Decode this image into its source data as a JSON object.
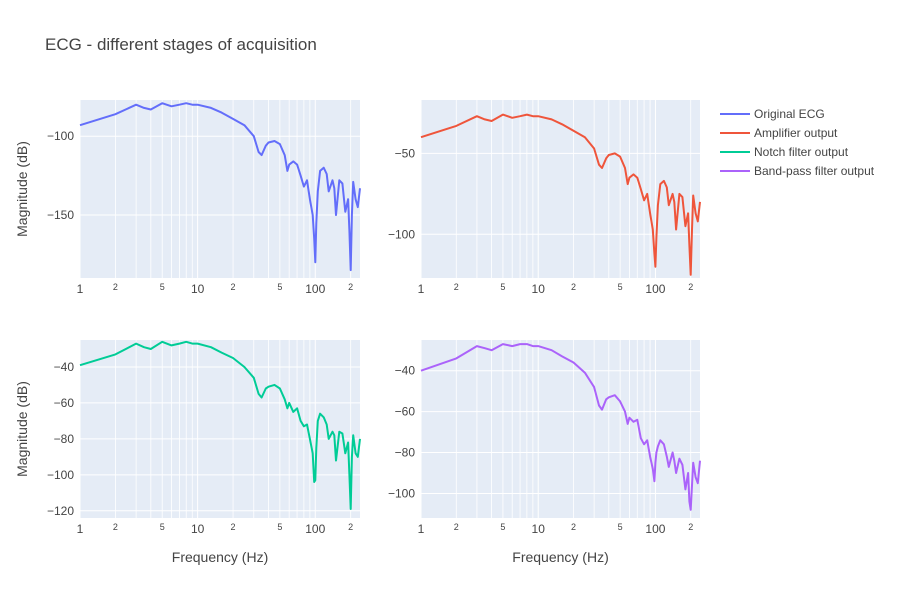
{
  "chart_data": {
    "type": "line",
    "title": "ECG - different stages of acquisition",
    "xscale": "log",
    "xlabel": "Frequency (Hz)",
    "ylabel": "Magnitude (dB)",
    "legend": "right",
    "grid": true,
    "plot_bg": "#e5ecf6",
    "subplots": [
      {
        "series": "Original ECG",
        "color": "#636efa",
        "ylim": [
          -190,
          -77
        ],
        "yticks": [
          -100,
          -150
        ],
        "x": [
          1,
          2,
          3,
          3.5,
          4,
          5,
          6,
          7,
          8,
          9,
          10,
          13,
          16,
          20,
          25,
          30,
          33,
          35,
          38,
          40,
          45,
          50,
          55,
          58,
          60,
          65,
          70,
          75,
          80,
          85,
          90,
          95,
          98,
          100,
          102,
          105,
          110,
          118,
          125,
          130,
          140,
          145,
          150,
          160,
          170,
          180,
          190,
          195,
          200,
          205,
          210,
          220,
          230,
          240
        ],
        "y": [
          -93,
          -86,
          -80,
          -82,
          -83,
          -79,
          -81,
          -80,
          -79,
          -80,
          -80,
          -82,
          -85,
          -89,
          -93,
          -100,
          -110,
          -112,
          -106,
          -104,
          -103,
          -105,
          -112,
          -122,
          -118,
          -116,
          -118,
          -125,
          -132,
          -128,
          -140,
          -150,
          -165,
          -180,
          -155,
          -135,
          -122,
          -120,
          -124,
          -135,
          -128,
          -133,
          -150,
          -128,
          -130,
          -148,
          -140,
          -160,
          -185,
          -150,
          -129,
          -140,
          -145,
          -133
        ]
      },
      {
        "series": "Amplifier output",
        "color": "#ef553b",
        "ylim": [
          -127,
          -17
        ],
        "yticks": [
          -50,
          -100
        ],
        "x": [
          1,
          2,
          3,
          3.5,
          4,
          5,
          6,
          7,
          8,
          9,
          10,
          13,
          16,
          20,
          25,
          30,
          33,
          35,
          38,
          40,
          45,
          50,
          55,
          58,
          60,
          65,
          70,
          75,
          80,
          85,
          90,
          95,
          98,
          100,
          102,
          105,
          110,
          118,
          125,
          130,
          140,
          145,
          150,
          160,
          170,
          180,
          190,
          195,
          200,
          205,
          210,
          220,
          230,
          240
        ],
        "y": [
          -40,
          -33,
          -27,
          -29,
          -30,
          -26,
          -28,
          -27,
          -26,
          -27,
          -27,
          -29,
          -32,
          -36,
          -40,
          -47,
          -57,
          -59,
          -53,
          -51,
          -50,
          -52,
          -59,
          -69,
          -65,
          -63,
          -65,
          -72,
          -79,
          -75,
          -87,
          -97,
          -112,
          -120,
          -102,
          -82,
          -69,
          -67,
          -71,
          -82,
          -75,
          -80,
          -97,
          -75,
          -77,
          -95,
          -87,
          -107,
          -125,
          -97,
          -76,
          -87,
          -92,
          -80
        ]
      },
      {
        "series": "Notch filter output",
        "color": "#00cc96",
        "ylim": [
          -124,
          -25
        ],
        "yticks": [
          -40,
          -60,
          -80,
          -100,
          -120
        ],
        "x": [
          1,
          2,
          3,
          3.5,
          4,
          5,
          6,
          7,
          8,
          9,
          10,
          13,
          16,
          20,
          25,
          30,
          33,
          35,
          38,
          40,
          45,
          50,
          55,
          58,
          60,
          65,
          70,
          75,
          80,
          85,
          90,
          95,
          98,
          100,
          102,
          105,
          110,
          118,
          125,
          130,
          140,
          145,
          150,
          160,
          170,
          180,
          190,
          195,
          200,
          205,
          210,
          220,
          230,
          240
        ],
        "y": [
          -39,
          -33,
          -27,
          -29,
          -30,
          -26,
          -28,
          -27,
          -26,
          -27,
          -27,
          -29,
          -32,
          -35,
          -40,
          -46,
          -55,
          -57,
          -52,
          -51,
          -50,
          -52,
          -58,
          -63,
          -60,
          -65,
          -63,
          -70,
          -73,
          -72,
          -80,
          -88,
          -104,
          -103,
          -85,
          -70,
          -66,
          -68,
          -72,
          -80,
          -76,
          -78,
          -92,
          -76,
          -77,
          -88,
          -82,
          -100,
          -119,
          -90,
          -78,
          -88,
          -90,
          -80
        ]
      },
      {
        "series": "Band-pass filter output",
        "color": "#ab63fa",
        "ylim": [
          -112,
          -25
        ],
        "yticks": [
          -40,
          -60,
          -80,
          -100
        ],
        "x": [
          1,
          2,
          3,
          3.5,
          4,
          5,
          6,
          7,
          8,
          9,
          10,
          13,
          16,
          20,
          25,
          30,
          33,
          35,
          38,
          40,
          45,
          50,
          55,
          58,
          60,
          65,
          70,
          75,
          80,
          85,
          90,
          95,
          98,
          100,
          102,
          105,
          110,
          118,
          125,
          130,
          140,
          145,
          150,
          160,
          170,
          180,
          190,
          195,
          200,
          205,
          210,
          220,
          230,
          240
        ],
        "y": [
          -40,
          -34,
          -28,
          -29,
          -30,
          -27,
          -28,
          -27,
          -27,
          -28,
          -28,
          -30,
          -33,
          -36,
          -41,
          -48,
          -57,
          -59,
          -54,
          -53,
          -52,
          -55,
          -60,
          -66,
          -63,
          -65,
          -64,
          -73,
          -76,
          -74,
          -82,
          -88,
          -94,
          -85,
          -80,
          -77,
          -74,
          -76,
          -82,
          -87,
          -80,
          -84,
          -90,
          -83,
          -86,
          -98,
          -90,
          -104,
          -108,
          -96,
          -85,
          -92,
          -95,
          -84
        ]
      }
    ]
  }
}
